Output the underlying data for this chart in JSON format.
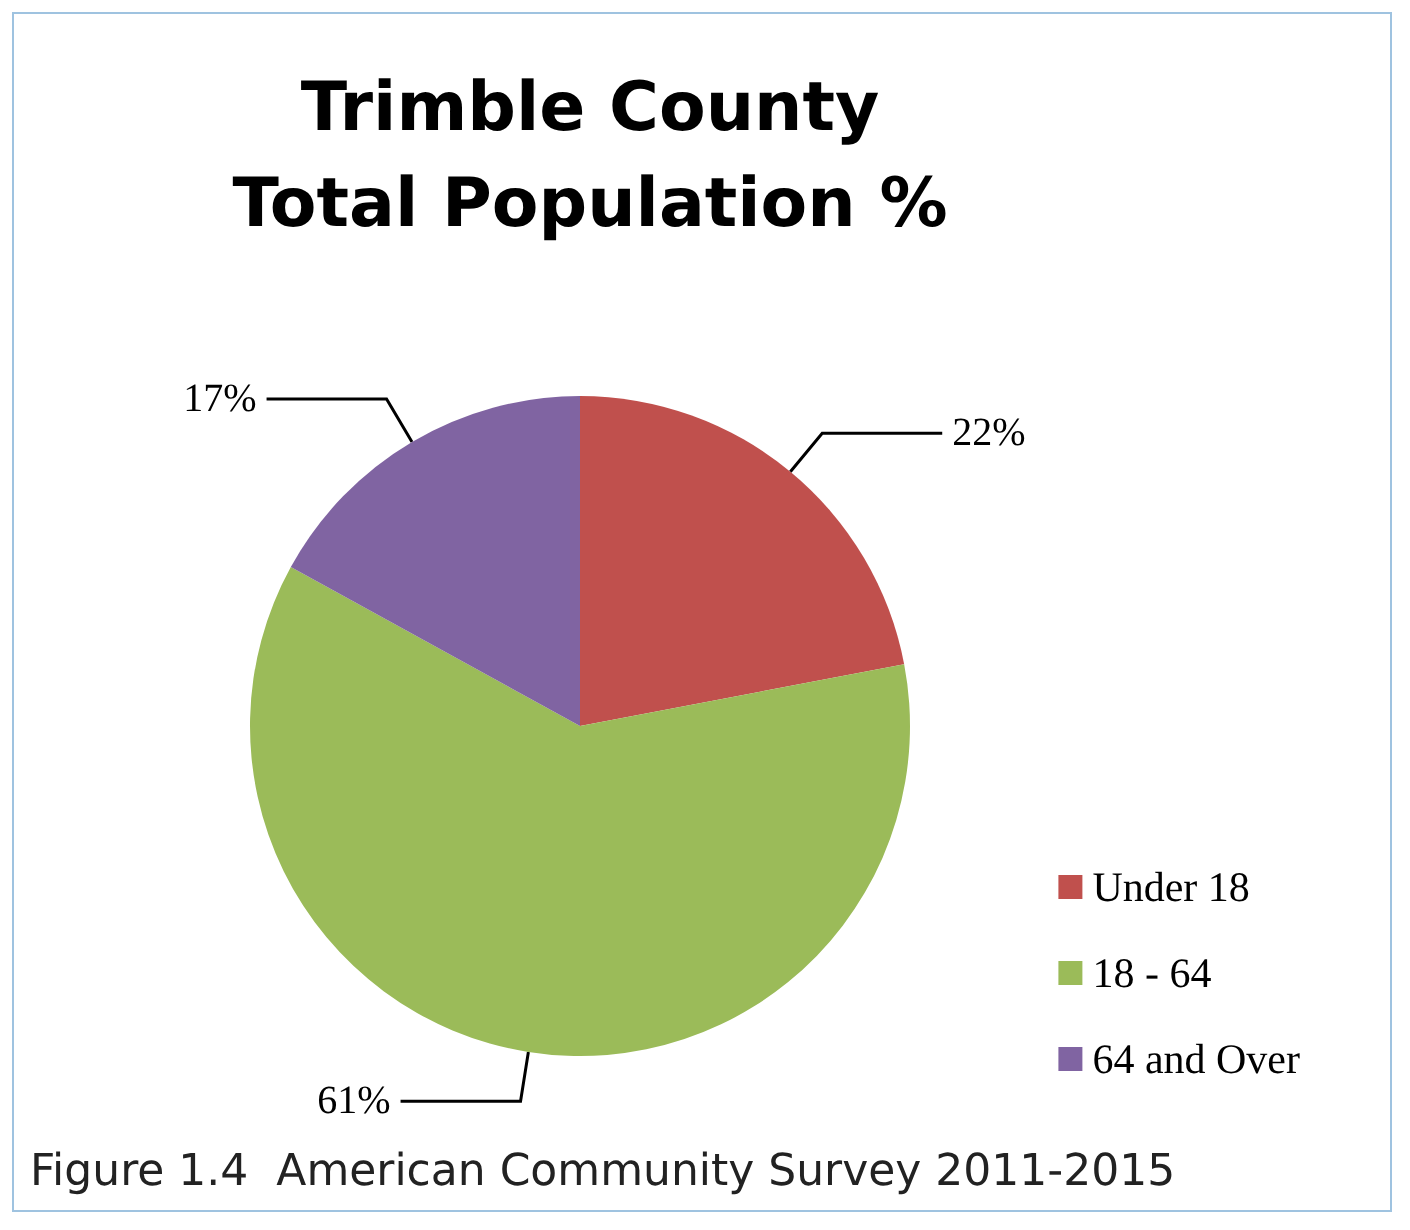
{
  "chart_data": {
    "type": "pie",
    "title": "Trimble County\nTotal Population %",
    "categories": [
      "Under 18",
      "18 - 64",
      "64 and Over"
    ],
    "values": [
      22,
      61,
      17
    ],
    "value_labels": [
      "22%",
      "61%",
      "17%"
    ],
    "colors": [
      "#c0504d",
      "#9bbb59",
      "#8064a2"
    ],
    "legend": "bottom right",
    "annotations": [
      "Figure 1.4  American Community Survey 2011-2015"
    ]
  }
}
